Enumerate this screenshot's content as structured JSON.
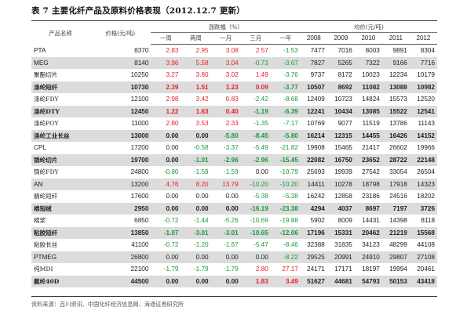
{
  "title": "表 7 主要化纤产品及原料价格表现（2012.12.7 更新）",
  "headers": {
    "product": "产品名称",
    "price": "价格(元/吨)",
    "change_group": "涨跌幅（%）",
    "avg_group": "均价(元/吨)",
    "periods": [
      "一周",
      "两周",
      "一月",
      "三月",
      "一年"
    ],
    "years": [
      "2008",
      "2009",
      "2010",
      "2011",
      "2012"
    ]
  },
  "rows": [
    {
      "name": "PTA",
      "price": "8370",
      "changes": [
        "2.83",
        "2.95",
        "3.08",
        "2.57",
        "-1.53"
      ],
      "years": [
        "7477",
        "7016",
        "8003",
        "9891",
        "8304"
      ],
      "shade": false,
      "bold": false
    },
    {
      "name": "MEG",
      "price": "8140",
      "changes": [
        "3.96",
        "5.58",
        "3.04",
        "-0.73",
        "-3.67"
      ],
      "years": [
        "7827",
        "5265",
        "7322",
        "9166",
        "7716"
      ],
      "shade": true,
      "bold": false
    },
    {
      "name": "聚酯切片",
      "price": "10250",
      "changes": [
        "3.27",
        "3.80",
        "3.02",
        "1.49",
        "-3.76"
      ],
      "years": [
        "9737",
        "8172",
        "10023",
        "12234",
        "10179"
      ],
      "shade": false,
      "bold": false
    },
    {
      "name": "涤纶短纤",
      "price": "10730",
      "changes": [
        "2.39",
        "1.51",
        "1.23",
        "0.09",
        "-3.77"
      ],
      "years": [
        "10507",
        "8692",
        "11082",
        "13088",
        "10982"
      ],
      "shade": true,
      "bold": true
    },
    {
      "name": "涤纶FDY",
      "price": "12100",
      "changes": [
        "2.98",
        "3.42",
        "0.83",
        "-2.42",
        "-8.68"
      ],
      "years": [
        "12409",
        "10723",
        "14824",
        "15573",
        "12520"
      ],
      "shade": false,
      "bold": false
    },
    {
      "name": "涤纶DTY",
      "price": "12450",
      "changes": [
        "1.22",
        "1.63",
        "0.40",
        "-1.19",
        "-6.39"
      ],
      "years": [
        "12241",
        "10434",
        "13085",
        "15522",
        "12541"
      ],
      "shade": true,
      "bold": true
    },
    {
      "name": "涤纶POY",
      "price": "11000",
      "changes": [
        "2.80",
        "3.53",
        "2.33",
        "-1.35",
        "-7.17"
      ],
      "years": [
        "10769",
        "9077",
        "11519",
        "13786",
        "11143"
      ],
      "shade": false,
      "bold": false
    },
    {
      "name": "涤纶工业长丝",
      "price": "13000",
      "changes": [
        "0.00",
        "0.00",
        "-5.80",
        "-8.45",
        "-5.80"
      ],
      "years": [
        "16214",
        "12315",
        "14455",
        "16426",
        "14152"
      ],
      "shade": true,
      "bold": true
    },
    {
      "name": "CPL",
      "price": "17200",
      "changes": [
        "0.00",
        "-0.58",
        "-3.37",
        "-5.49",
        "-21.82"
      ],
      "years": [
        "19908",
        "15465",
        "21417",
        "26602",
        "19966"
      ],
      "shade": false,
      "bold": false
    },
    {
      "name": "锦纶切片",
      "price": "19700",
      "changes": [
        "0.00",
        "-1.01",
        "-2.96",
        "-2.96",
        "-15.45"
      ],
      "years": [
        "22082",
        "16750",
        "23652",
        "28722",
        "22148"
      ],
      "shade": true,
      "bold": true
    },
    {
      "name": "锦纶FDY",
      "price": "24800",
      "changes": [
        "-0.80",
        "-1.59",
        "-1.59",
        "0.00",
        "-10.79"
      ],
      "years": [
        "25693",
        "19939",
        "27542",
        "33054",
        "26504"
      ],
      "shade": false,
      "bold": false
    },
    {
      "name": "AN",
      "price": "13200",
      "changes": [
        "4.76",
        "8.20",
        "13.79",
        "-10.20",
        "-10.20"
      ],
      "years": [
        "14411",
        "10278",
        "18798",
        "17918",
        "14323"
      ],
      "shade": true,
      "bold": false
    },
    {
      "name": "腈纶短纤",
      "price": "17600",
      "changes": [
        "0.00",
        "0.00",
        "0.00",
        "-5.38",
        "-5.38"
      ],
      "years": [
        "16242",
        "12858",
        "23186",
        "24516",
        "18202"
      ],
      "shade": false,
      "bold": false
    },
    {
      "name": "棉短绒",
      "price": "2950",
      "changes": [
        "0.00",
        "0.00",
        "0.00",
        "-16.19",
        "-23.38"
      ],
      "years": [
        "4294",
        "4037",
        "8697",
        "7197",
        "3726"
      ],
      "shade": true,
      "bold": true
    },
    {
      "name": "棉浆",
      "price": "6850",
      "changes": [
        "-0.72",
        "-1.44",
        "-5.26",
        "-10.69",
        "-19.88"
      ],
      "years": [
        "5902",
        "8009",
        "14431",
        "14398",
        "8118"
      ],
      "shade": false,
      "bold": false
    },
    {
      "name": "粘胶短纤",
      "price": "13850",
      "changes": [
        "-1.07",
        "-3.01",
        "-3.01",
        "-10.65",
        "-12.06"
      ],
      "years": [
        "17196",
        "15331",
        "20462",
        "21219",
        "15568"
      ],
      "shade": true,
      "bold": true
    },
    {
      "name": "粘胶长丝",
      "price": "41100",
      "changes": [
        "-0.72",
        "-1.20",
        "-1.67",
        "-5.47",
        "-8.46"
      ],
      "years": [
        "32388",
        "31835",
        "34123",
        "48299",
        "44108"
      ],
      "shade": false,
      "bold": false
    },
    {
      "name": "PTMEG",
      "price": "26800",
      "changes": [
        "0.00",
        "0.00",
        "0.00",
        "0.00",
        "-8.22"
      ],
      "years": [
        "29525",
        "20991",
        "24910",
        "29807",
        "27108"
      ],
      "shade": true,
      "bold": false
    },
    {
      "name": "纯MDI",
      "price": "22100",
      "changes": [
        "-1.79",
        "-1.79",
        "-1.79",
        "2.80",
        "27.17"
      ],
      "years": [
        "24171",
        "17171",
        "18197",
        "19994",
        "20461"
      ],
      "shade": false,
      "bold": false
    },
    {
      "name": "氨纶40D",
      "price": "44500",
      "changes": [
        "0.00",
        "0.00",
        "0.00",
        "1.83",
        "3.49"
      ],
      "years": [
        "51627",
        "44681",
        "54793",
        "50153",
        "43418"
      ],
      "shade": true,
      "bold": true
    }
  ],
  "source": "资料来源：百川资讯、中国化纤经济信息网、海通证券研究所",
  "colors": {
    "up": "#e8202a",
    "down": "#1a9a3a",
    "shade": "#dcdcdc"
  }
}
